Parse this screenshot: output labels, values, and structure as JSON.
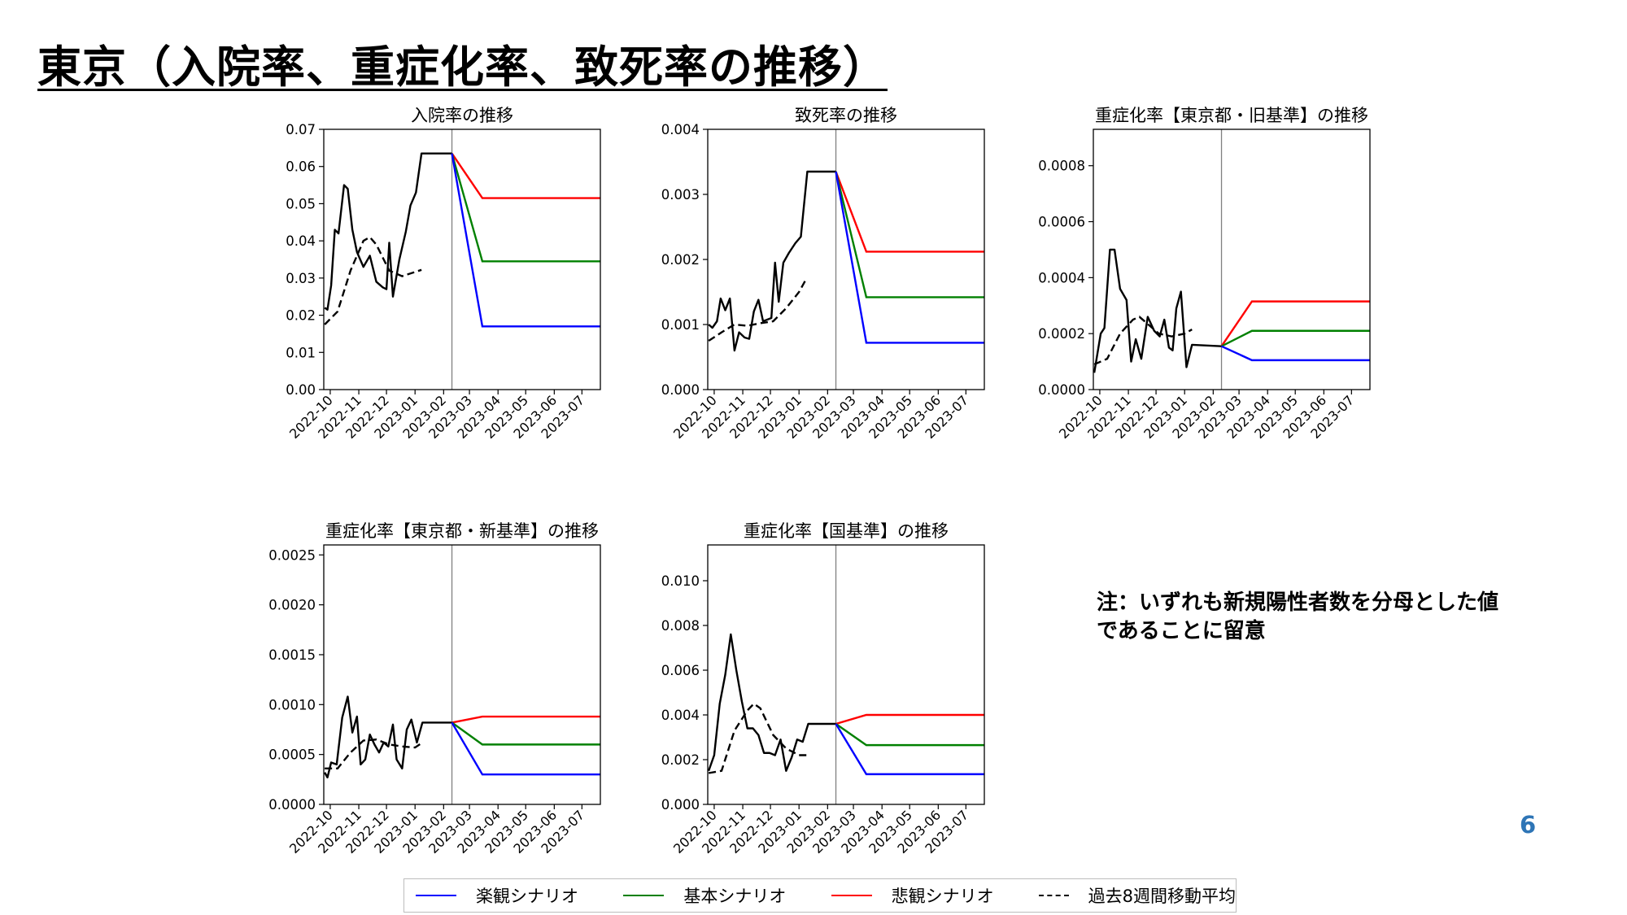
{
  "slide": {
    "title": "東京（入院率、重症化率、致死率の推移）",
    "note": "注：いずれも新規陽性者数を分母とした値\nであることに留意",
    "page_number": "6"
  },
  "colors": {
    "optimistic": "#0000ff",
    "baseline": "#008000",
    "pessimistic": "#ff0000",
    "actual": "#000000",
    "divider": "#808080",
    "page_number": "#2e75b6"
  },
  "legend": [
    {
      "label": "楽観シナリオ",
      "color": "#0000ff",
      "style": "solid"
    },
    {
      "label": "基本シナリオ",
      "color": "#008000",
      "style": "solid"
    },
    {
      "label": "悲観シナリオ",
      "color": "#ff0000",
      "style": "solid"
    },
    {
      "label": "過去8週間移動平均",
      "color": "#000000",
      "style": "dashed"
    }
  ],
  "chart_data": [
    {
      "type": "line",
      "title": "入院率の推移",
      "x_ticks": [
        "2022-10",
        "2022-11",
        "2022-12",
        "2023-01",
        "2023-02",
        "2023-03",
        "2023-04",
        "2023-05",
        "2023-06",
        "2023-07"
      ],
      "x_range": [
        "2022-09-24",
        "2023-07-21"
      ],
      "divider_date": "2023-02-10",
      "ylim": [
        0,
        0.07
      ],
      "y_ticks": [
        "0.00",
        "0.01",
        "0.02",
        "0.03",
        "0.04",
        "0.05",
        "0.06",
        "0.07"
      ],
      "y_values": [
        0,
        0.01,
        0.02,
        0.03,
        0.04,
        0.05,
        0.06,
        0.07
      ],
      "actual": [
        [
          "2022-09-25",
          0.022
        ],
        [
          "2022-09-28",
          0.0215
        ],
        [
          "2022-10-02",
          0.028
        ],
        [
          "2022-10-06",
          0.043
        ],
        [
          "2022-10-10",
          0.042
        ],
        [
          "2022-10-16",
          0.055
        ],
        [
          "2022-10-20",
          0.054
        ],
        [
          "2022-10-25",
          0.043
        ],
        [
          "2022-10-30",
          0.037
        ],
        [
          "2022-11-06",
          0.033
        ],
        [
          "2022-11-13",
          0.036
        ],
        [
          "2022-11-20",
          0.029
        ],
        [
          "2022-11-27",
          0.0275
        ],
        [
          "2022-12-01",
          0.027
        ],
        [
          "2022-12-04",
          0.0395
        ],
        [
          "2022-12-08",
          0.025
        ],
        [
          "2022-12-15",
          0.035
        ],
        [
          "2022-12-22",
          0.0425
        ],
        [
          "2022-12-27",
          0.0495
        ],
        [
          "2023-01-02",
          0.053
        ],
        [
          "2023-01-08",
          0.0635
        ]
      ],
      "moving_average": [
        [
          "2022-09-25",
          0.0175
        ],
        [
          "2022-10-09",
          0.021
        ],
        [
          "2022-10-23",
          0.032
        ],
        [
          "2022-11-06",
          0.04
        ],
        [
          "2022-11-13",
          0.041
        ],
        [
          "2022-11-20",
          0.039
        ],
        [
          "2022-12-04",
          0.032
        ],
        [
          "2022-12-18",
          0.0305
        ],
        [
          "2023-01-08",
          0.0322
        ]
      ],
      "scenarios": {
        "start": [
          "2023-02-10",
          0.0635
        ],
        "plateau_date": "2023-03-15",
        "optimistic": 0.017,
        "baseline": 0.0345,
        "pessimistic": 0.0515
      }
    },
    {
      "type": "line",
      "title": "致死率の推移",
      "x_ticks": [
        "2022-10",
        "2022-11",
        "2022-12",
        "2023-01",
        "2023-02",
        "2023-03",
        "2023-04",
        "2023-05",
        "2023-06",
        "2023-07"
      ],
      "x_range": [
        "2022-09-24",
        "2023-07-21"
      ],
      "divider_date": "2023-02-10",
      "ylim": [
        0,
        0.004
      ],
      "y_ticks": [
        "0.000",
        "0.001",
        "0.002",
        "0.003",
        "0.004"
      ],
      "y_values": [
        0,
        0.001,
        0.002,
        0.003,
        0.004
      ],
      "actual": [
        [
          "2022-09-25",
          0.001
        ],
        [
          "2022-09-29",
          0.00095
        ],
        [
          "2022-10-04",
          0.00105
        ],
        [
          "2022-10-08",
          0.0014
        ],
        [
          "2022-10-13",
          0.00122
        ],
        [
          "2022-10-18",
          0.0014
        ],
        [
          "2022-10-23",
          0.0006
        ],
        [
          "2022-10-28",
          0.00088
        ],
        [
          "2022-11-03",
          0.0008
        ],
        [
          "2022-11-08",
          0.00078
        ],
        [
          "2022-11-13",
          0.0012
        ],
        [
          "2022-11-18",
          0.00138
        ],
        [
          "2022-11-23",
          0.00105
        ],
        [
          "2022-12-02",
          0.0011
        ],
        [
          "2022-12-06",
          0.00195
        ],
        [
          "2022-12-10",
          0.00135
        ],
        [
          "2022-12-15",
          0.00195
        ],
        [
          "2022-12-21",
          0.0021
        ],
        [
          "2022-12-28",
          0.00225
        ],
        [
          "2023-01-03",
          0.00235
        ],
        [
          "2023-01-10",
          0.00335
        ]
      ],
      "moving_average": [
        [
          "2022-09-25",
          0.00075
        ],
        [
          "2022-10-09",
          0.00088
        ],
        [
          "2022-10-23",
          0.001
        ],
        [
          "2022-11-06",
          0.00098
        ],
        [
          "2022-11-20",
          0.00102
        ],
        [
          "2022-12-04",
          0.00105
        ],
        [
          "2022-12-18",
          0.00125
        ],
        [
          "2023-01-01",
          0.0015
        ],
        [
          "2023-01-08",
          0.00168
        ]
      ],
      "scenarios": {
        "start": [
          "2023-02-10",
          0.00335
        ],
        "plateau_date": "2023-03-15",
        "optimistic": 0.00072,
        "baseline": 0.00142,
        "pessimistic": 0.00212
      }
    },
    {
      "type": "line",
      "title": "重症化率【東京都・旧基準】の推移",
      "x_ticks": [
        "2022-10",
        "2022-11",
        "2022-12",
        "2023-01",
        "2023-02",
        "2023-03",
        "2023-04",
        "2023-05",
        "2023-06",
        "2023-07"
      ],
      "x_range": [
        "2022-09-24",
        "2023-07-21"
      ],
      "divider_date": "2023-02-10",
      "ylim": [
        0,
        0.00093
      ],
      "y_ticks": [
        "0.0000",
        "0.0002",
        "0.0004",
        "0.0006",
        "0.0008"
      ],
      "y_values": [
        0,
        0.0002,
        0.0004,
        0.0006,
        0.0008
      ],
      "actual": [
        [
          "2022-09-25",
          6e-05
        ],
        [
          "2022-10-02",
          0.0002
        ],
        [
          "2022-10-06",
          0.00022
        ],
        [
          "2022-10-12",
          0.0005
        ],
        [
          "2022-10-17",
          0.0005
        ],
        [
          "2022-10-23",
          0.00036
        ],
        [
          "2022-10-30",
          0.00032
        ],
        [
          "2022-11-04",
          0.0001
        ],
        [
          "2022-11-09",
          0.00018
        ],
        [
          "2022-11-15",
          0.00011
        ],
        [
          "2022-11-22",
          0.00026
        ],
        [
          "2022-11-29",
          0.00021
        ],
        [
          "2022-12-05",
          0.00019
        ],
        [
          "2022-12-10",
          0.00025
        ],
        [
          "2022-12-15",
          0.00015
        ],
        [
          "2022-12-19",
          0.00014
        ],
        [
          "2022-12-23",
          0.00029
        ],
        [
          "2022-12-28",
          0.00035
        ],
        [
          "2023-01-03",
          8e-05
        ],
        [
          "2023-01-09",
          0.00016
        ]
      ],
      "moving_average": [
        [
          "2022-09-25",
          9e-05
        ],
        [
          "2022-10-09",
          0.00011
        ],
        [
          "2022-10-23",
          0.0002
        ],
        [
          "2022-11-06",
          0.00025
        ],
        [
          "2022-11-13",
          0.00026
        ],
        [
          "2022-11-20",
          0.00024
        ],
        [
          "2022-12-04",
          0.0002
        ],
        [
          "2022-12-18",
          0.00019
        ],
        [
          "2023-01-01",
          0.0002
        ],
        [
          "2023-01-09",
          0.000215
        ]
      ],
      "scenarios": {
        "start": [
          "2023-02-10",
          0.000155
        ],
        "plateau_date": "2023-03-15",
        "optimistic": 0.000105,
        "baseline": 0.00021,
        "pessimistic": 0.000315
      }
    },
    {
      "type": "line",
      "title": "重症化率【東京都・新基準】の推移",
      "x_ticks": [
        "2022-10",
        "2022-11",
        "2022-12",
        "2023-01",
        "2023-02",
        "2023-03",
        "2023-04",
        "2023-05",
        "2023-06",
        "2023-07"
      ],
      "x_range": [
        "2022-09-24",
        "2023-07-21"
      ],
      "divider_date": "2023-02-10",
      "ylim": [
        0,
        0.0026
      ],
      "y_ticks": [
        "0.0000",
        "0.0005",
        "0.0010",
        "0.0015",
        "0.0020",
        "0.0025"
      ],
      "y_values": [
        0,
        0.0005,
        0.001,
        0.0015,
        0.002,
        0.0025
      ],
      "actual": [
        [
          "2022-09-25",
          0.00032
        ],
        [
          "2022-09-28",
          0.00027
        ],
        [
          "2022-10-02",
          0.00042
        ],
        [
          "2022-10-08",
          0.0004
        ],
        [
          "2022-10-14",
          0.00087
        ],
        [
          "2022-10-20",
          0.00108
        ],
        [
          "2022-10-25",
          0.00072
        ],
        [
          "2022-10-30",
          0.00088
        ],
        [
          "2022-11-03",
          0.0004
        ],
        [
          "2022-11-08",
          0.00045
        ],
        [
          "2022-11-13",
          0.0007
        ],
        [
          "2022-11-18",
          0.0006
        ],
        [
          "2022-11-23",
          0.00052
        ],
        [
          "2022-11-28",
          0.00062
        ],
        [
          "2022-12-03",
          0.00058
        ],
        [
          "2022-12-08",
          0.0008
        ],
        [
          "2022-12-12",
          0.00045
        ],
        [
          "2022-12-18",
          0.00036
        ],
        [
          "2022-12-23",
          0.00075
        ],
        [
          "2022-12-28",
          0.00085
        ],
        [
          "2023-01-03",
          0.00062
        ],
        [
          "2023-01-09",
          0.00082
        ]
      ],
      "moving_average": [
        [
          "2022-09-25",
          0.00036
        ],
        [
          "2022-10-09",
          0.00036
        ],
        [
          "2022-10-23",
          0.00052
        ],
        [
          "2022-11-06",
          0.00064
        ],
        [
          "2022-11-20",
          0.00065
        ],
        [
          "2022-12-04",
          0.0006
        ],
        [
          "2022-12-18",
          0.00058
        ],
        [
          "2023-01-01",
          0.00057
        ],
        [
          "2023-01-09",
          0.00062
        ]
      ],
      "scenarios": {
        "start": [
          "2023-02-10",
          0.00082
        ],
        "plateau_date": "2023-03-15",
        "optimistic": 0.0003,
        "baseline": 0.0006,
        "pessimistic": 0.00088
      }
    },
    {
      "type": "line",
      "title": "重症化率【国基準】の推移",
      "x_ticks": [
        "2022-10",
        "2022-11",
        "2022-12",
        "2023-01",
        "2023-02",
        "2023-03",
        "2023-04",
        "2023-05",
        "2023-06",
        "2023-07"
      ],
      "x_range": [
        "2022-09-24",
        "2023-07-21"
      ],
      "divider_date": "2023-02-10",
      "ylim": [
        0,
        0.0116
      ],
      "y_ticks": [
        "0.000",
        "0.002",
        "0.004",
        "0.006",
        "0.008",
        "0.010"
      ],
      "y_values": [
        0,
        0.002,
        0.004,
        0.006,
        0.008,
        0.01
      ],
      "actual": [
        [
          "2022-09-25",
          0.0015
        ],
        [
          "2022-10-01",
          0.0022
        ],
        [
          "2022-10-07",
          0.0045
        ],
        [
          "2022-10-13",
          0.0058
        ],
        [
          "2022-10-19",
          0.0076
        ],
        [
          "2022-10-25",
          0.006
        ],
        [
          "2022-10-31",
          0.0046
        ],
        [
          "2022-11-06",
          0.0034
        ],
        [
          "2022-11-12",
          0.0034
        ],
        [
          "2022-11-18",
          0.0031
        ],
        [
          "2022-11-24",
          0.0023
        ],
        [
          "2022-11-30",
          0.0023
        ],
        [
          "2022-12-06",
          0.0022
        ],
        [
          "2022-12-12",
          0.0029
        ],
        [
          "2022-12-18",
          0.0015
        ],
        [
          "2022-12-24",
          0.0021
        ],
        [
          "2022-12-30",
          0.0029
        ],
        [
          "2023-01-05",
          0.0028
        ],
        [
          "2023-01-11",
          0.0036
        ]
      ],
      "moving_average": [
        [
          "2022-09-25",
          0.0014
        ],
        [
          "2022-10-09",
          0.0015
        ],
        [
          "2022-10-23",
          0.0033
        ],
        [
          "2022-11-06",
          0.0042
        ],
        [
          "2022-11-13",
          0.0045
        ],
        [
          "2022-11-20",
          0.0043
        ],
        [
          "2022-12-04",
          0.0031
        ],
        [
          "2022-12-18",
          0.0025
        ],
        [
          "2023-01-01",
          0.0022
        ],
        [
          "2023-01-11",
          0.0022
        ]
      ],
      "scenarios": {
        "start": [
          "2023-02-10",
          0.0036
        ],
        "plateau_date": "2023-03-15",
        "optimistic": 0.00135,
        "baseline": 0.00265,
        "pessimistic": 0.004
      }
    }
  ]
}
